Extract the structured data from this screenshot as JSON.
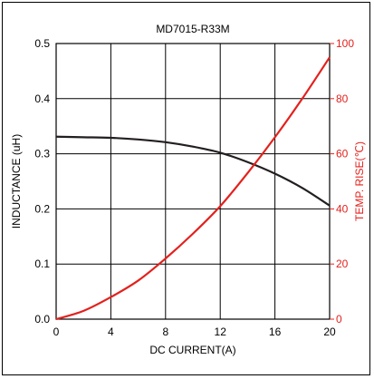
{
  "chart_data": {
    "type": "line",
    "title": "MD7015-R33M",
    "xlabel": "DC CURRENT(A)",
    "ylabel": "INDUCTANCE (uH)",
    "y2label": "TEMP. RISE(℃)",
    "xlim": [
      0,
      20
    ],
    "ylim": [
      0,
      0.5
    ],
    "y2lim": [
      0,
      100
    ],
    "x_ticks": [
      "0",
      "4",
      "8",
      "12",
      "16",
      "20"
    ],
    "y_ticks": [
      "0.0",
      "0.1",
      "0.2",
      "0.3",
      "0.4",
      "0.5"
    ],
    "y2_ticks": [
      "0",
      "20",
      "40",
      "60",
      "80",
      "100"
    ],
    "grid": true,
    "series": [
      {
        "axis": "left",
        "color": "#231f20",
        "x": [
          0,
          2,
          4,
          6,
          8,
          10,
          12,
          14,
          16,
          18,
          20
        ],
        "values": [
          0.331,
          0.33,
          0.329,
          0.326,
          0.321,
          0.313,
          0.302,
          0.285,
          0.264,
          0.238,
          0.206
        ]
      },
      {
        "axis": "right",
        "color": "#e3211c",
        "x": [
          0,
          2,
          4,
          6,
          8,
          10,
          12,
          14,
          16,
          18,
          20
        ],
        "values": [
          0,
          3,
          8,
          14,
          22,
          31,
          41,
          53,
          66,
          80,
          95
        ]
      }
    ],
    "colors": {
      "axis_left": "#000000",
      "axis_right": "#e3211c",
      "grid": "#000000"
    }
  }
}
